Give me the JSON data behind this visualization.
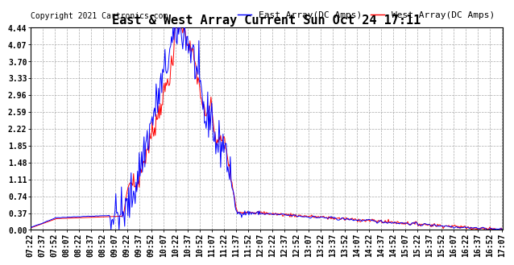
{
  "title": "East & West Array Current Sun Oct 24 17:11",
  "copyright": "Copyright 2021 Cartronics.com",
  "legend_east": "East Array(DC Amps)",
  "legend_west": "West Array(DC Amps)",
  "east_color": "#0000FF",
  "west_color": "#FF0000",
  "background_color": "#FFFFFF",
  "grid_color": "#AAAAAA",
  "yticks": [
    0.0,
    0.37,
    0.74,
    1.11,
    1.48,
    1.85,
    2.22,
    2.59,
    2.96,
    3.33,
    3.7,
    4.07,
    4.44
  ],
  "ylim": [
    0.0,
    4.44
  ],
  "title_fontsize": 11,
  "tick_fontsize": 7,
  "legend_fontsize": 8,
  "copyright_fontsize": 7
}
